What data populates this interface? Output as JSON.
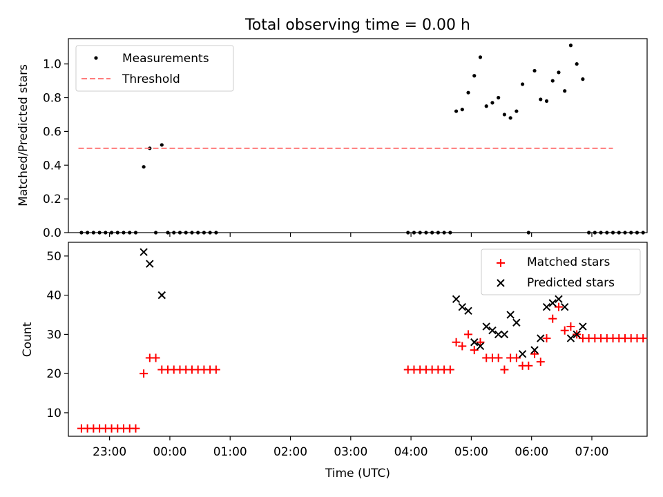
{
  "title": "Total observing time = 0.00 h",
  "chart_data": [
    {
      "type": "scatter",
      "ylabel": "Matched/Predicted stars",
      "xlim": [
        "22:19",
        "07:55"
      ],
      "ylim": [
        0,
        1.15
      ],
      "y_ticks": [
        "0.0",
        "0.2",
        "0.4",
        "0.6",
        "0.8",
        "1.0"
      ],
      "legend_position": "top-left",
      "series": [
        {
          "name": "Measurements",
          "style": "dot",
          "color": "#000000",
          "points": [
            [
              "22:32",
              0
            ],
            [
              "22:38",
              0
            ],
            [
              "22:44",
              0
            ],
            [
              "22:50",
              0
            ],
            [
              "22:56",
              0
            ],
            [
              "23:02",
              0
            ],
            [
              "23:08",
              0
            ],
            [
              "23:14",
              0
            ],
            [
              "23:20",
              0
            ],
            [
              "23:26",
              0
            ],
            [
              "23:34",
              0.39
            ],
            [
              "23:40",
              0.5
            ],
            [
              "23:46",
              0
            ],
            [
              "23:52",
              0.52
            ],
            [
              "23:58",
              0
            ],
            [
              "00:04",
              0
            ],
            [
              "00:10",
              0
            ],
            [
              "00:16",
              0
            ],
            [
              "00:22",
              0
            ],
            [
              "00:28",
              0
            ],
            [
              "00:34",
              0
            ],
            [
              "00:40",
              0
            ],
            [
              "00:46",
              0
            ],
            [
              "03:57",
              0
            ],
            [
              "04:03",
              0
            ],
            [
              "04:09",
              0
            ],
            [
              "04:15",
              0
            ],
            [
              "04:21",
              0
            ],
            [
              "04:27",
              0
            ],
            [
              "04:33",
              0
            ],
            [
              "04:39",
              0
            ],
            [
              "04:45",
              0.72
            ],
            [
              "04:51",
              0.73
            ],
            [
              "04:57",
              0.83
            ],
            [
              "05:03",
              0.93
            ],
            [
              "05:09",
              1.04
            ],
            [
              "05:15",
              0.75
            ],
            [
              "05:21",
              0.77
            ],
            [
              "05:27",
              0.8
            ],
            [
              "05:33",
              0.7
            ],
            [
              "05:39",
              0.68
            ],
            [
              "05:45",
              0.72
            ],
            [
              "05:51",
              0.88
            ],
            [
              "05:57",
              0
            ],
            [
              "06:03",
              0.96
            ],
            [
              "06:09",
              0.79
            ],
            [
              "06:15",
              0.78
            ],
            [
              "06:21",
              0.9
            ],
            [
              "06:27",
              0.95
            ],
            [
              "06:33",
              0.84
            ],
            [
              "06:39",
              1.11
            ],
            [
              "06:45",
              1.0
            ],
            [
              "06:51",
              0.91
            ],
            [
              "06:57",
              0
            ],
            [
              "07:03",
              0
            ],
            [
              "07:09",
              0
            ],
            [
              "07:15",
              0
            ],
            [
              "07:21",
              0
            ],
            [
              "07:27",
              0
            ],
            [
              "07:33",
              0
            ],
            [
              "07:39",
              0
            ],
            [
              "07:45",
              0
            ],
            [
              "07:51",
              0
            ]
          ]
        },
        {
          "name": "Threshold",
          "style": "dashed-line",
          "color": "#ff7b7b",
          "points": [
            [
              "22:29",
              0.5
            ],
            [
              "07:21",
              0.5
            ]
          ]
        }
      ]
    },
    {
      "type": "scatter",
      "xlabel": "Time (UTC)",
      "ylabel": "Count",
      "xlim": [
        "22:19",
        "07:55"
      ],
      "ylim": [
        4,
        53.5
      ],
      "y_ticks": [
        "10",
        "20",
        "30",
        "40",
        "50"
      ],
      "x_ticks": [
        "23:00",
        "00:00",
        "01:00",
        "02:00",
        "03:00",
        "04:00",
        "05:00",
        "06:00",
        "07:00"
      ],
      "legend_position": "top-right",
      "series": [
        {
          "name": "Matched stars",
          "marker": "plus",
          "color": "#ff0000",
          "points": [
            [
              "22:32",
              6
            ],
            [
              "22:38",
              6
            ],
            [
              "22:44",
              6
            ],
            [
              "22:50",
              6
            ],
            [
              "22:56",
              6
            ],
            [
              "23:02",
              6
            ],
            [
              "23:08",
              6
            ],
            [
              "23:14",
              6
            ],
            [
              "23:20",
              6
            ],
            [
              "23:26",
              6
            ],
            [
              "23:34",
              20
            ],
            [
              "23:40",
              24
            ],
            [
              "23:46",
              24
            ],
            [
              "23:52",
              21
            ],
            [
              "23:58",
              21
            ],
            [
              "00:04",
              21
            ],
            [
              "00:10",
              21
            ],
            [
              "00:16",
              21
            ],
            [
              "00:22",
              21
            ],
            [
              "00:28",
              21
            ],
            [
              "00:34",
              21
            ],
            [
              "00:40",
              21
            ],
            [
              "00:46",
              21
            ],
            [
              "03:57",
              21
            ],
            [
              "04:03",
              21
            ],
            [
              "04:09",
              21
            ],
            [
              "04:15",
              21
            ],
            [
              "04:21",
              21
            ],
            [
              "04:27",
              21
            ],
            [
              "04:33",
              21
            ],
            [
              "04:39",
              21
            ],
            [
              "04:45",
              28
            ],
            [
              "04:51",
              27
            ],
            [
              "04:57",
              30
            ],
            [
              "05:03",
              26
            ],
            [
              "05:09",
              28
            ],
            [
              "05:15",
              24
            ],
            [
              "05:21",
              24
            ],
            [
              "05:27",
              24
            ],
            [
              "05:33",
              21
            ],
            [
              "05:39",
              24
            ],
            [
              "05:45",
              24
            ],
            [
              "05:51",
              22
            ],
            [
              "05:57",
              22
            ],
            [
              "06:03",
              25
            ],
            [
              "06:09",
              23
            ],
            [
              "06:15",
              29
            ],
            [
              "06:21",
              34
            ],
            [
              "06:27",
              37
            ],
            [
              "06:33",
              31
            ],
            [
              "06:39",
              32
            ],
            [
              "06:45",
              30
            ],
            [
              "06:51",
              29
            ],
            [
              "06:57",
              29
            ],
            [
              "07:03",
              29
            ],
            [
              "07:09",
              29
            ],
            [
              "07:15",
              29
            ],
            [
              "07:21",
              29
            ],
            [
              "07:27",
              29
            ],
            [
              "07:33",
              29
            ],
            [
              "07:39",
              29
            ],
            [
              "07:45",
              29
            ],
            [
              "07:51",
              29
            ]
          ]
        },
        {
          "name": "Predicted stars",
          "marker": "x",
          "color": "#000000",
          "points": [
            [
              "23:34",
              51
            ],
            [
              "23:40",
              48
            ],
            [
              "23:52",
              40
            ],
            [
              "04:45",
              39
            ],
            [
              "04:51",
              37
            ],
            [
              "04:57",
              36
            ],
            [
              "05:03",
              28
            ],
            [
              "05:09",
              27
            ],
            [
              "05:15",
              32
            ],
            [
              "05:21",
              31
            ],
            [
              "05:27",
              30
            ],
            [
              "05:33",
              30
            ],
            [
              "05:39",
              35
            ],
            [
              "05:45",
              33
            ],
            [
              "05:51",
              25
            ],
            [
              "06:03",
              26
            ],
            [
              "06:09",
              29
            ],
            [
              "06:15",
              37
            ],
            [
              "06:21",
              38
            ],
            [
              "06:27",
              39
            ],
            [
              "06:33",
              37
            ],
            [
              "06:39",
              29
            ],
            [
              "06:45",
              30
            ],
            [
              "06:51",
              32
            ]
          ]
        }
      ]
    }
  ]
}
